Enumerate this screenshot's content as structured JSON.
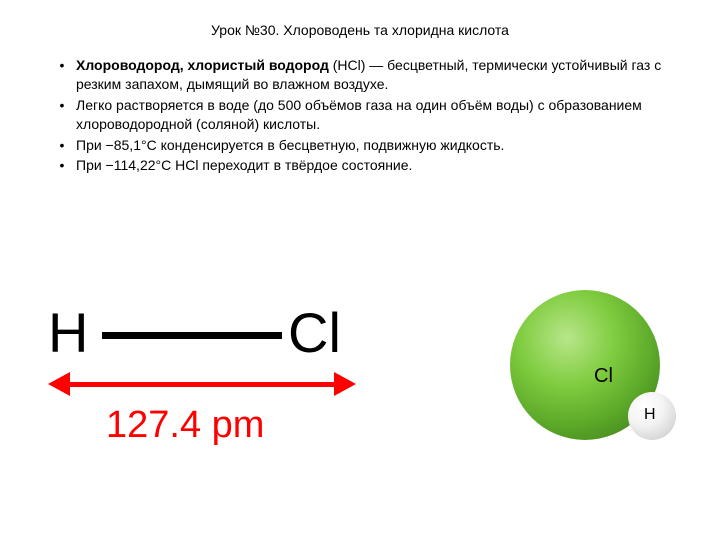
{
  "title": "Урок №30. Хлороводень та хлоридна кислота",
  "bullets": [
    {
      "bold": "Хлороводород, хлористый водород",
      "text": " (HCl) — бесцветный, термически устойчивый газ с резким запахом, дымящий во влажном воздухе."
    },
    {
      "bold": "",
      "text": "Легко растворяется в воде (до 500 объёмов газа на один объём воды) с образованием хлороводородной (соляной) кислоты."
    },
    {
      "bold": "",
      "text": "При −85,1°C конденсируется в бесцветную, подвижную жидкость."
    },
    {
      "bold": "",
      "text": "При −114,22°C HCl переходит в твёрдое состояние."
    }
  ],
  "structure": {
    "atom_left": "H",
    "atom_right": "Cl",
    "distance": "127.4 pm",
    "arrow_color": "#ff0000",
    "bond_color": "#000000"
  },
  "molecule3d": {
    "cl_label": "Cl",
    "h_label": "H",
    "cl_color_light": "#b8e68a",
    "cl_color_mid": "#7fcc3f",
    "cl_color_dark": "#3a7018",
    "h_color_light": "#ffffff",
    "h_color_dark": "#bcbcbc"
  },
  "colors": {
    "background": "#ffffff",
    "text": "#000000",
    "accent": "#ff0000"
  }
}
